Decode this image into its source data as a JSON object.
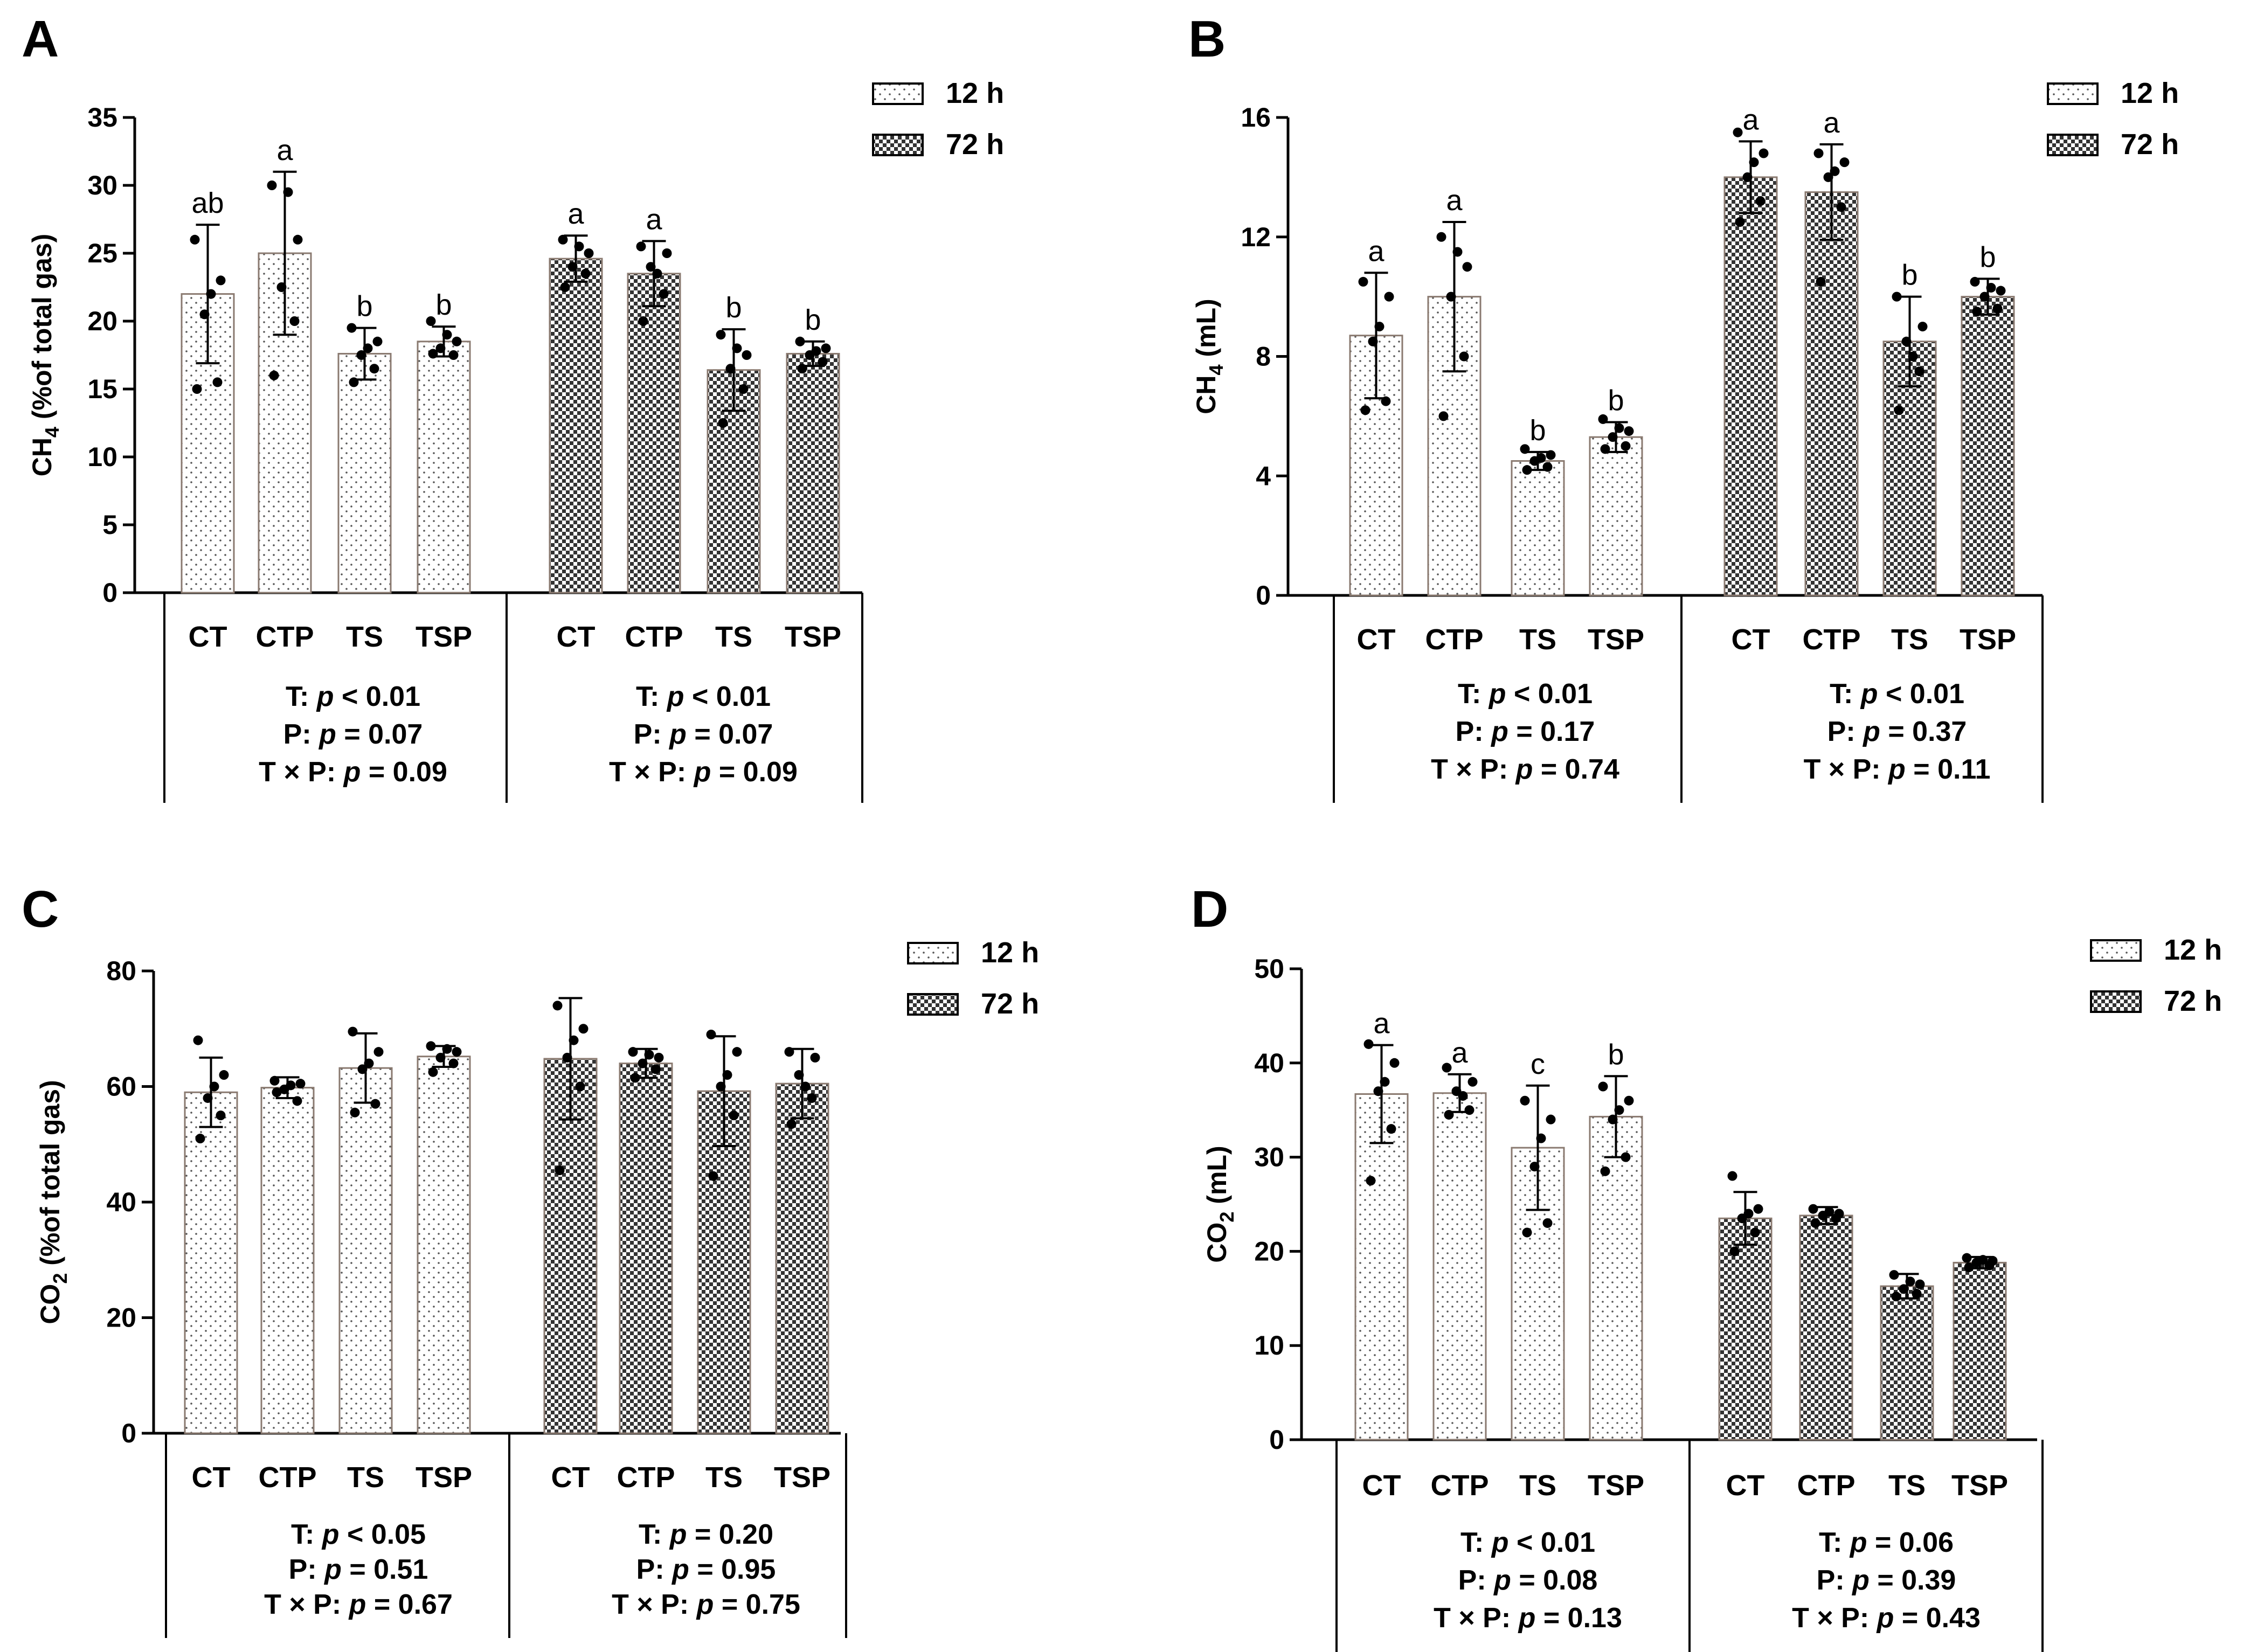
{
  "figure": {
    "legend": {
      "items": [
        "12 h",
        "72 h"
      ]
    }
  },
  "chart_data": [
    {
      "panel": "A",
      "type": "bar",
      "ylabel_main": "CH",
      "ylabel_sub": "4",
      "ylabel_rest": " (%of total gas)",
      "ylim": [
        0,
        35
      ],
      "yticks": [
        0,
        5,
        10,
        15,
        20,
        25,
        30,
        35
      ],
      "legend": [
        "12 h",
        "72 h"
      ],
      "groups": [
        {
          "name": "12 h",
          "categories": [
            "CT",
            "CTP",
            "TS",
            "TSP"
          ],
          "means": [
            22.0,
            25.0,
            17.6,
            18.5
          ],
          "sd": [
            5.1,
            6.0,
            1.9,
            1.1
          ],
          "letters": [
            "ab",
            "a",
            "b",
            "b"
          ],
          "points": [
            [
              26,
              23,
              20.5,
              15.5,
              15.0,
              22.0
            ],
            [
              30,
              26,
              22.5,
              20,
              16,
              29.5
            ],
            [
              19.5,
              18.5,
              17.5,
              16.5,
              15.5,
              18.0
            ],
            [
              20,
              18.5,
              18,
              17.5,
              17.6,
              19
            ]
          ],
          "stats": [
            [
              "T: ",
              "p",
              " < 0.01"
            ],
            [
              "P: ",
              "p",
              " = 0.07"
            ],
            [
              "T × P: ",
              "p",
              " = 0.09"
            ]
          ]
        },
        {
          "name": "72 h",
          "categories": [
            "CT",
            "CTP",
            "TS",
            "TSP"
          ],
          "means": [
            24.6,
            23.5,
            16.4,
            17.6
          ],
          "sd": [
            1.7,
            2.4,
            3.0,
            0.9
          ],
          "letters": [
            "a",
            "a",
            "b",
            "b"
          ],
          "points": [
            [
              26,
              25,
              24,
              23.5,
              22.5,
              25.5
            ],
            [
              25.5,
              25,
              24,
              22,
              20,
              23.5
            ],
            [
              19,
              17.5,
              16.5,
              15,
              12.5,
              18
            ],
            [
              18.5,
              18,
              17.5,
              17,
              16.5,
              17.8
            ]
          ],
          "stats": [
            [
              "T: ",
              "p",
              " < 0.01"
            ],
            [
              "P: ",
              "p",
              " = 0.07"
            ],
            [
              "T × P: ",
              "p",
              " = 0.09"
            ]
          ]
        }
      ]
    },
    {
      "panel": "B",
      "type": "bar",
      "ylabel_main": "CH",
      "ylabel_sub": "4",
      "ylabel_rest": " (mL)",
      "ylim": [
        0,
        16
      ],
      "yticks": [
        0,
        4,
        8,
        12,
        16
      ],
      "legend": [
        "12 h",
        "72 h"
      ],
      "groups": [
        {
          "name": "12 h",
          "categories": [
            "CT",
            "CTP",
            "TS",
            "TSP"
          ],
          "means": [
            8.7,
            10.0,
            4.5,
            5.3
          ],
          "sd": [
            2.1,
            2.5,
            0.3,
            0.5
          ],
          "letters": [
            "a",
            "a",
            "b",
            "b"
          ],
          "points": [
            [
              10.5,
              10,
              8.5,
              6.5,
              6.2,
              9.0
            ],
            [
              12,
              11,
              10,
              8.0,
              6.0,
              11.5
            ],
            [
              4.9,
              4.7,
              4.5,
              4.3,
              4.2,
              4.6
            ],
            [
              5.9,
              5.5,
              5.3,
              5.0,
              4.9,
              5.6
            ]
          ],
          "stats": [
            [
              "T: ",
              "p",
              " < 0.01"
            ],
            [
              "P: ",
              "p",
              " = 0.17"
            ],
            [
              "T × P: ",
              "p",
              " = 0.74"
            ]
          ]
        },
        {
          "name": "72 h",
          "categories": [
            "CT",
            "CTP",
            "TS",
            "TSP"
          ],
          "means": [
            14.0,
            13.5,
            8.5,
            10.0
          ],
          "sd": [
            1.2,
            1.6,
            1.5,
            0.6
          ],
          "letters": [
            "a",
            "a",
            "b",
            "b"
          ],
          "points": [
            [
              15.5,
              14.8,
              14,
              13.2,
              12.5,
              14.5
            ],
            [
              14.8,
              14.5,
              14,
              13,
              10.5,
              14.2
            ],
            [
              10.0,
              9.0,
              8.5,
              7.5,
              6.2,
              8.0
            ],
            [
              10.5,
              10.2,
              10,
              9.6,
              9.5,
              10.3
            ]
          ],
          "stats": [
            [
              "T: ",
              "p",
              " < 0.01"
            ],
            [
              "P: ",
              "p",
              " = 0.37"
            ],
            [
              "T × P: ",
              "p",
              " = 0.11"
            ]
          ]
        }
      ]
    },
    {
      "panel": "C",
      "type": "bar",
      "ylabel_main": "CO",
      "ylabel_sub": "2",
      "ylabel_rest": " (%of total gas)",
      "ylim": [
        0,
        80
      ],
      "yticks": [
        0,
        20,
        40,
        60,
        80
      ],
      "legend": [
        "12 h",
        "72 h"
      ],
      "groups": [
        {
          "name": "12 h",
          "categories": [
            "CT",
            "CTP",
            "TS",
            "TSP"
          ],
          "means": [
            59.0,
            59.8,
            63.2,
            65.2
          ],
          "sd": [
            6.0,
            1.8,
            6.0,
            1.8
          ],
          "letters": [
            "",
            "",
            "",
            ""
          ],
          "points": [
            [
              68,
              62,
              58,
              55,
              51,
              60
            ],
            [
              61,
              60.5,
              59.5,
              57.5,
              59,
              60.2
            ],
            [
              69.5,
              66,
              63,
              57,
              55.5,
              64
            ],
            [
              67,
              66,
              65,
              64,
              62.5,
              66.5
            ]
          ],
          "stats": [
            [
              "T: ",
              "p",
              " < 0.05"
            ],
            [
              "P: ",
              "p",
              " = 0.51"
            ],
            [
              "T × P: ",
              "p",
              " = 0.67"
            ]
          ]
        },
        {
          "name": "72 h",
          "categories": [
            "CT",
            "CTP",
            "TS",
            "TSP"
          ],
          "means": [
            64.8,
            64.0,
            59.2,
            60.5
          ],
          "sd": [
            10.5,
            2.5,
            9.5,
            6.0
          ],
          "letters": [
            "",
            "",
            "",
            ""
          ],
          "points": [
            [
              74,
              70,
              65,
              60,
              45.5,
              68
            ],
            [
              66,
              65,
              64,
              63,
              61.5,
              65.5
            ],
            [
              69,
              66,
              60,
              55,
              44.5,
              62
            ],
            [
              66,
              65,
              62,
              58,
              53.5,
              60
            ]
          ],
          "stats": [
            [
              "T: ",
              "p",
              " = 0.20"
            ],
            [
              "P: ",
              "p",
              " = 0.95"
            ],
            [
              "T × P: ",
              "p",
              " = 0.75"
            ]
          ]
        }
      ]
    },
    {
      "panel": "D",
      "type": "bar",
      "ylabel_main": "CO",
      "ylabel_sub": "2",
      "ylabel_rest": " (mL)",
      "ylim": [
        0,
        50
      ],
      "yticks": [
        0,
        10,
        20,
        30,
        40,
        50
      ],
      "legend": [
        "12 h",
        "72 h"
      ],
      "groups": [
        {
          "name": "12 h",
          "categories": [
            "CT",
            "CTP",
            "TS",
            "TSP"
          ],
          "means": [
            36.7,
            36.8,
            31.0,
            34.3
          ],
          "sd": [
            5.2,
            2.0,
            6.6,
            4.3
          ],
          "letters": [
            "a",
            "a",
            "c",
            "b"
          ],
          "points": [
            [
              42,
              40,
              37,
              33,
              27.5,
              38
            ],
            [
              39.5,
              38,
              37,
              35,
              34.5,
              36.5
            ],
            [
              36,
              34,
              29,
              23,
              22,
              32
            ],
            [
              37.5,
              36,
              34,
              30,
              28.5,
              35
            ]
          ],
          "stats": [
            [
              "T: ",
              "p",
              " < 0.01"
            ],
            [
              "P: ",
              "p",
              " = 0.08"
            ],
            [
              "T × P: ",
              "p",
              " = 0.13"
            ]
          ]
        },
        {
          "name": "72 h",
          "categories": [
            "CT",
            "CTP",
            "TS",
            "TSP"
          ],
          "means": [
            23.5,
            23.8,
            16.3,
            18.8
          ],
          "sd": [
            2.8,
            0.9,
            1.3,
            0.6
          ],
          "letters": [
            "",
            "",
            "",
            ""
          ],
          "points": [
            [
              28,
              24.5,
              23.5,
              22,
              20,
              24
            ],
            [
              24.5,
              24,
              23.8,
              23.5,
              23,
              24.2
            ],
            [
              17.5,
              16.5,
              16,
              15.5,
              15.2,
              16.8
            ],
            [
              19.3,
              19,
              18.8,
              18.5,
              18.3,
              19.1
            ]
          ],
          "stats": [
            [
              "T: ",
              "p",
              " = 0.06"
            ],
            [
              "P: ",
              "p",
              " = 0.39"
            ],
            [
              "T × P: ",
              "p",
              " = 0.43"
            ]
          ]
        }
      ]
    }
  ]
}
